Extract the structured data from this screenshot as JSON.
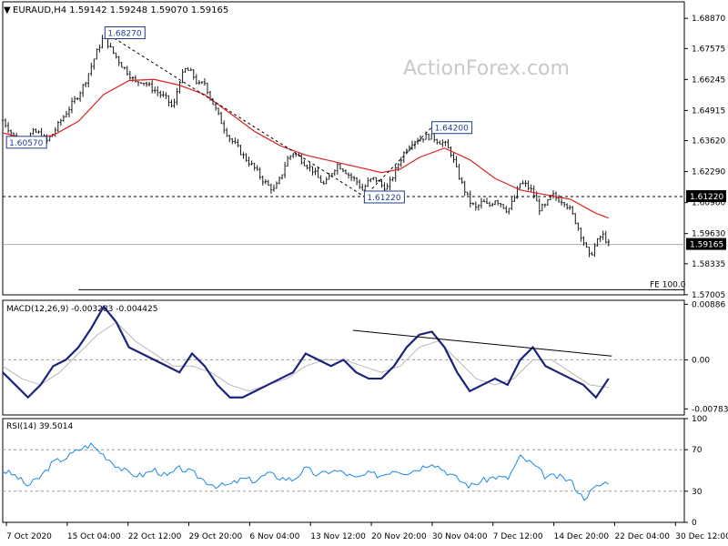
{
  "symbol_header": "EURAUD,H4  1.59142  1.59248  1.59070  1.59165",
  "watermark": "ActionForex.com",
  "chart_data": [
    {
      "type": "candlestick",
      "panel": "price",
      "symbol": "EURAUD",
      "timeframe": "H4",
      "ohlc_latest": {
        "open": 1.59142,
        "high": 1.59248,
        "low": 1.5907,
        "close": 1.59165
      },
      "ylim": [
        1.57,
        1.6958
      ],
      "y_ticks": [
        "1.68870",
        "1.67575",
        "1.66245",
        "1.64915",
        "1.63620",
        "1.62290",
        "1.60960",
        "1.59630",
        "1.58335",
        "1.57005"
      ],
      "current_price_label": "1.59165",
      "horizontal_line": {
        "value": 1.6122,
        "label": "1.61220"
      },
      "fe_label": "FE 100.0",
      "fe_level": 1.5722,
      "annotations": [
        {
          "text": "1.68270",
          "x": 16.2,
          "y": 1.6827
        },
        {
          "text": "1.60570",
          "x": 0.6,
          "y": 1.6357
        },
        {
          "text": "1.61220",
          "x": 57.3,
          "y": 1.6122
        },
        {
          "text": "1.64200",
          "x": 68.0,
          "y": 1.642
        }
      ],
      "trendlines": [
        {
          "from": [
            16.2,
            1.6827
          ],
          "to": [
            57.3,
            1.6122
          ],
          "style": "dashed"
        },
        {
          "from": [
            57.3,
            1.6122
          ],
          "to": [
            68.0,
            1.642
          ],
          "style": "dashed"
        }
      ],
      "close_path": [
        [
          0,
          1.645
        ],
        [
          1,
          1.641
        ],
        [
          2,
          1.637
        ],
        [
          3,
          1.6355
        ],
        [
          4,
          1.638
        ],
        [
          5,
          1.64
        ],
        [
          6,
          1.639
        ],
        [
          7,
          1.636
        ],
        [
          8,
          1.6395
        ],
        [
          9,
          1.644
        ],
        [
          10,
          1.648
        ],
        [
          11,
          1.652
        ],
        [
          12,
          1.656
        ],
        [
          13,
          1.661
        ],
        [
          14,
          1.668
        ],
        [
          15,
          1.675
        ],
        [
          16,
          1.681
        ],
        [
          17,
          1.676
        ],
        [
          18,
          1.672
        ],
        [
          19,
          1.668
        ],
        [
          20,
          1.665
        ],
        [
          21,
          1.661
        ],
        [
          22,
          1.662
        ],
        [
          23,
          1.66
        ],
        [
          24,
          1.658
        ],
        [
          25,
          1.656
        ],
        [
          26,
          1.654
        ],
        [
          27,
          1.65
        ],
        [
          28,
          1.662
        ],
        [
          29,
          1.667
        ],
        [
          30,
          1.665
        ],
        [
          31,
          1.66
        ],
        [
          32,
          1.661
        ],
        [
          33,
          1.654
        ],
        [
          34,
          1.648
        ],
        [
          35,
          1.642
        ],
        [
          36,
          1.637
        ],
        [
          37,
          1.634
        ],
        [
          38,
          1.63
        ],
        [
          39,
          1.627
        ],
        [
          40,
          1.624
        ],
        [
          41,
          1.62
        ],
        [
          42,
          1.617
        ],
        [
          43,
          1.615
        ],
        [
          44,
          1.62
        ],
        [
          45,
          1.628
        ],
        [
          46,
          1.631
        ],
        [
          47,
          1.629
        ],
        [
          48,
          1.626
        ],
        [
          49,
          1.624
        ],
        [
          50,
          1.62
        ],
        [
          51,
          1.617
        ],
        [
          52,
          1.622
        ],
        [
          53,
          1.626
        ],
        [
          54,
          1.624
        ],
        [
          55,
          1.621
        ],
        [
          56,
          1.619
        ],
        [
          57,
          1.615
        ],
        [
          58,
          1.619
        ],
        [
          59,
          1.62
        ],
        [
          60,
          1.617
        ],
        [
          61,
          1.616
        ],
        [
          62,
          1.622
        ],
        [
          63,
          1.628
        ],
        [
          64,
          1.633
        ],
        [
          65,
          1.636
        ],
        [
          66,
          1.637
        ],
        [
          67,
          1.638
        ],
        [
          68,
          1.638
        ],
        [
          69,
          1.636
        ],
        [
          70,
          1.635
        ],
        [
          71,
          1.631
        ],
        [
          72,
          1.623
        ],
        [
          73,
          1.616
        ],
        [
          74,
          1.61
        ],
        [
          75,
          1.607
        ],
        [
          76,
          1.61
        ],
        [
          77,
          1.608
        ],
        [
          78,
          1.611
        ],
        [
          79,
          1.609
        ],
        [
          80,
          1.606
        ],
        [
          81,
          1.611
        ],
        [
          82,
          1.618
        ],
        [
          83,
          1.617
        ],
        [
          84,
          1.614
        ],
        [
          85,
          1.607
        ],
        [
          86,
          1.608
        ],
        [
          87,
          1.613
        ],
        [
          88,
          1.611
        ],
        [
          89,
          1.61
        ],
        [
          90,
          1.606
        ],
        [
          91,
          1.6
        ],
        [
          92,
          1.593
        ],
        [
          93,
          1.586
        ],
        [
          94,
          1.592
        ],
        [
          95,
          1.596
        ],
        [
          96,
          1.5917
        ]
      ],
      "moving_average": [
        [
          0,
          1.6395
        ],
        [
          4,
          1.637
        ],
        [
          8,
          1.6385
        ],
        [
          12,
          1.6445
        ],
        [
          16,
          1.656
        ],
        [
          20,
          1.662
        ],
        [
          24,
          1.6625
        ],
        [
          28,
          1.66
        ],
        [
          32,
          1.656
        ],
        [
          36,
          1.648
        ],
        [
          40,
          1.64
        ],
        [
          44,
          1.634
        ],
        [
          48,
          1.63
        ],
        [
          52,
          1.6275
        ],
        [
          56,
          1.625
        ],
        [
          60,
          1.6225
        ],
        [
          63,
          1.624
        ],
        [
          66,
          1.629
        ],
        [
          70,
          1.633
        ],
        [
          74,
          1.628
        ],
        [
          78,
          1.62
        ],
        [
          82,
          1.615
        ],
        [
          86,
          1.613
        ],
        [
          90,
          1.611
        ],
        [
          94,
          1.605
        ],
        [
          96,
          1.603
        ]
      ],
      "x_tick_labels": [
        "7 Oct 2020",
        "15 Oct 04:00",
        "22 Oct 12:00",
        "29 Oct 20:00",
        "6 Nov 04:00",
        "13 Nov 12:00",
        "20 Nov 20:00",
        "30 Nov 04:00",
        "7 Dec 12:00",
        "14 Dec 20:00",
        "22 Dec 04:00",
        "30 Dec 12:00"
      ]
    },
    {
      "type": "line",
      "panel": "macd",
      "title": "MACD(12,26,9) -0.003283 -0.004425",
      "ylim": [
        -0.0088,
        0.0095
      ],
      "y_ticks": [
        "0.00886",
        "0.00",
        "-0.007834"
      ],
      "series": [
        {
          "values": [
            [
              0,
              -0.002
            ],
            [
              2,
              -0.004
            ],
            [
              4,
              -0.006
            ],
            [
              6,
              -0.004
            ],
            [
              8,
              -0.001
            ],
            [
              10,
              0.0
            ],
            [
              12,
              0.002
            ],
            [
              14,
              0.005
            ],
            [
              16,
              0.0085
            ],
            [
              18,
              0.006
            ],
            [
              20,
              0.002
            ],
            [
              22,
              0.001
            ],
            [
              24,
              0.0
            ],
            [
              26,
              -0.001
            ],
            [
              28,
              -0.002
            ],
            [
              30,
              0.001
            ],
            [
              32,
              -0.001
            ],
            [
              34,
              -0.004
            ],
            [
              36,
              -0.006
            ],
            [
              38,
              -0.006
            ],
            [
              40,
              -0.005
            ],
            [
              42,
              -0.004
            ],
            [
              44,
              -0.003
            ],
            [
              46,
              -0.002
            ],
            [
              48,
              0.001
            ],
            [
              50,
              0.0
            ],
            [
              52,
              -0.001
            ],
            [
              54,
              0.0
            ],
            [
              56,
              -0.002
            ],
            [
              58,
              -0.003
            ],
            [
              60,
              -0.003
            ],
            [
              62,
              -0.001
            ],
            [
              64,
              0.002
            ],
            [
              66,
              0.004
            ],
            [
              68,
              0.0045
            ],
            [
              70,
              0.002
            ],
            [
              72,
              -0.002
            ],
            [
              74,
              -0.005
            ],
            [
              76,
              -0.004
            ],
            [
              78,
              -0.003
            ],
            [
              80,
              -0.004
            ],
            [
              82,
              0.0
            ],
            [
              84,
              0.002
            ],
            [
              86,
              -0.001
            ],
            [
              88,
              -0.002
            ],
            [
              90,
              -0.003
            ],
            [
              92,
              -0.004
            ],
            [
              94,
              -0.006
            ],
            [
              96,
              -0.003
            ]
          ]
        },
        {
          "values": [
            [
              0,
              -0.001
            ],
            [
              3,
              -0.003
            ],
            [
              6,
              -0.004
            ],
            [
              9,
              -0.002
            ],
            [
              12,
              0.001
            ],
            [
              15,
              0.004
            ],
            [
              18,
              0.006
            ],
            [
              21,
              0.003
            ],
            [
              24,
              0.001
            ],
            [
              27,
              -0.001
            ],
            [
              30,
              -0.001
            ],
            [
              33,
              -0.002
            ],
            [
              36,
              -0.004
            ],
            [
              39,
              -0.005
            ],
            [
              42,
              -0.004
            ],
            [
              45,
              -0.003
            ],
            [
              48,
              -0.001
            ],
            [
              51,
              0.0
            ],
            [
              54,
              0.0
            ],
            [
              57,
              -0.001
            ],
            [
              60,
              -0.002
            ],
            [
              63,
              -0.001
            ],
            [
              66,
              0.002
            ],
            [
              69,
              0.003
            ],
            [
              72,
              0.0
            ],
            [
              75,
              -0.003
            ],
            [
              78,
              -0.004
            ],
            [
              81,
              -0.003
            ],
            [
              84,
              0.0
            ],
            [
              87,
              0.0
            ],
            [
              90,
              -0.002
            ],
            [
              93,
              -0.004
            ],
            [
              96,
              -0.0044
            ]
          ]
        }
      ],
      "trendline": {
        "from": [
          55.5,
          0.0047
        ],
        "to": [
          96.5,
          0.0006
        ]
      }
    },
    {
      "type": "line",
      "panel": "rsi",
      "title": "RSI(14) 39.5014",
      "ylim": [
        0,
        100
      ],
      "y_ticks": [
        "100",
        "70",
        "30",
        "0"
      ],
      "levels": [
        70,
        30
      ],
      "values": [
        [
          0,
          50
        ],
        [
          2,
          45
        ],
        [
          4,
          35
        ],
        [
          6,
          44
        ],
        [
          8,
          58
        ],
        [
          10,
          62
        ],
        [
          12,
          70
        ],
        [
          14,
          75
        ],
        [
          16,
          65
        ],
        [
          18,
          55
        ],
        [
          20,
          47
        ],
        [
          22,
          45
        ],
        [
          24,
          51
        ],
        [
          26,
          44
        ],
        [
          28,
          52
        ],
        [
          30,
          48
        ],
        [
          32,
          40
        ],
        [
          34,
          35
        ],
        [
          36,
          36
        ],
        [
          38,
          42
        ],
        [
          40,
          40
        ],
        [
          42,
          47
        ],
        [
          44,
          43
        ],
        [
          46,
          41
        ],
        [
          48,
          52
        ],
        [
          50,
          45
        ],
        [
          52,
          50
        ],
        [
          54,
          48
        ],
        [
          56,
          42
        ],
        [
          58,
          47
        ],
        [
          60,
          45
        ],
        [
          62,
          51
        ],
        [
          64,
          48
        ],
        [
          66,
          52
        ],
        [
          68,
          58
        ],
        [
          70,
          50
        ],
        [
          72,
          42
        ],
        [
          74,
          35
        ],
        [
          76,
          40
        ],
        [
          78,
          44
        ],
        [
          80,
          42
        ],
        [
          82,
          63
        ],
        [
          84,
          56
        ],
        [
          86,
          44
        ],
        [
          88,
          44
        ],
        [
          90,
          40
        ],
        [
          92,
          23
        ],
        [
          94,
          34
        ],
        [
          96,
          39.5
        ]
      ]
    }
  ]
}
